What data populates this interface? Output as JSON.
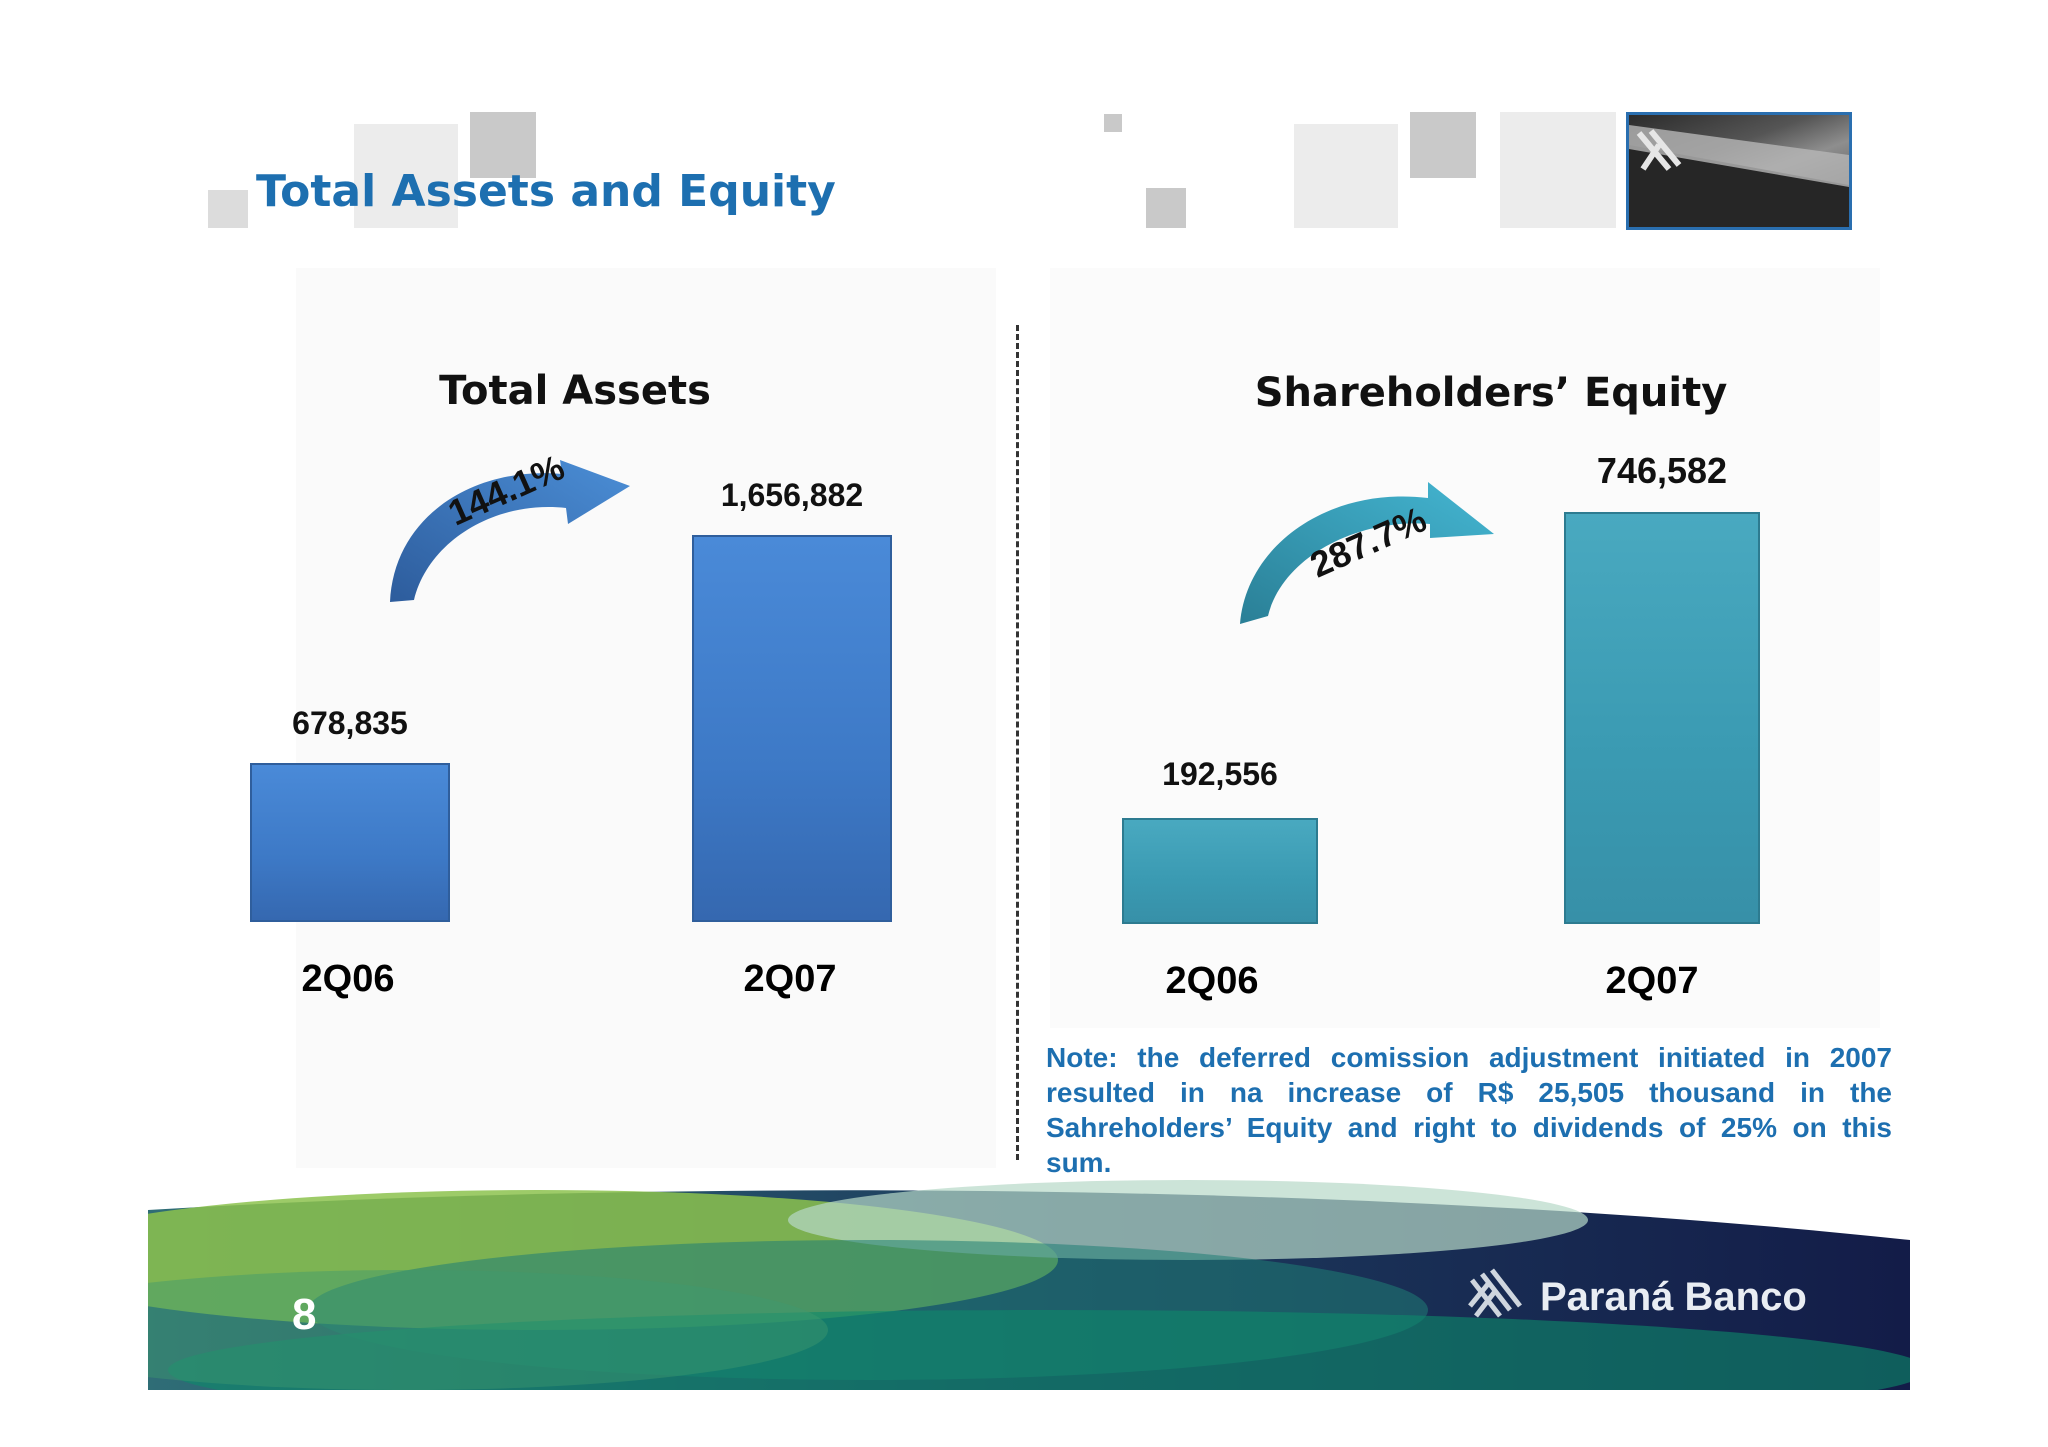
{
  "page_title": "Total Assets and Equity",
  "brand_name": "Paraná Banco",
  "page_number": "8",
  "colors": {
    "title_blue": "#1d6fb0",
    "assets_bar": "#3d79c6",
    "equity_bar": "#3a9ab2",
    "footer_navy": "#141e4a",
    "footer_green": "#8cc24e"
  },
  "note": "Note: the deferred comission adjustment initiated in 2007 resulted in na increase of R$ 25,505 thousand in the Sahreholders’ Equity and right to dividends of 25% on this sum.",
  "chart_data": [
    {
      "type": "bar",
      "title": "Total Assets",
      "categories": [
        "2Q06",
        "2Q07"
      ],
      "values": [
        678835,
        1656882
      ],
      "value_labels": [
        "678,835",
        "1,656,882"
      ],
      "growth_label": "144.1%",
      "ylim": [
        0,
        2000000
      ],
      "grid": false,
      "color": "#3d79c6"
    },
    {
      "type": "bar",
      "title": "Shareholders’ Equity",
      "categories": [
        "2Q06",
        "2Q07"
      ],
      "values": [
        192556,
        746582
      ],
      "value_labels": [
        "192,556",
        "746,582"
      ],
      "growth_label": "287.7%",
      "ylim": [
        0,
        900000
      ],
      "grid": false,
      "color": "#3a9ab2"
    }
  ]
}
